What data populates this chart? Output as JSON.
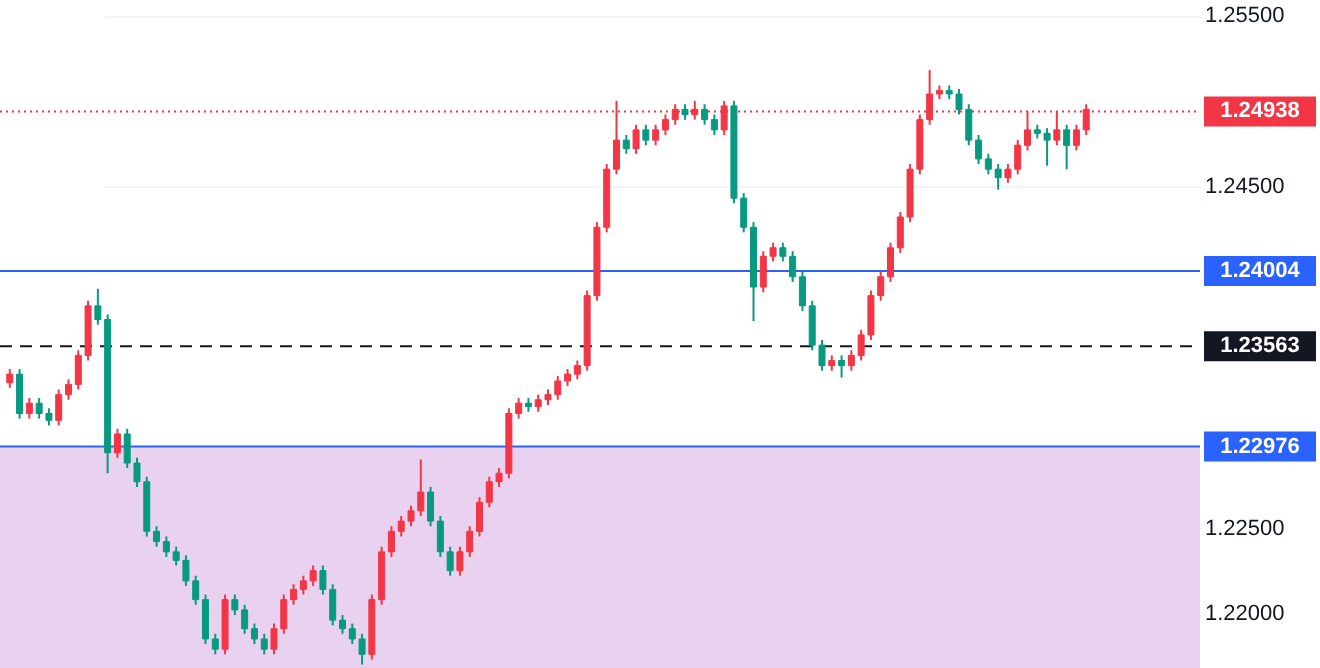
{
  "chart_data": {
    "type": "candlestick",
    "categories": [
      null,
      null,
      null,
      null,
      null,
      null,
      null,
      null,
      null,
      null,
      null,
      null,
      null,
      null,
      null,
      null,
      null,
      null,
      null,
      null,
      null,
      null,
      null,
      null,
      null,
      null,
      null,
      null,
      null,
      null,
      null,
      null,
      null,
      null,
      null,
      null,
      null,
      null,
      null,
      null,
      null,
      null,
      null,
      null,
      null,
      null,
      null,
      null,
      null,
      null,
      null,
      null,
      null,
      null,
      null,
      null,
      null,
      null,
      null,
      null,
      null,
      null,
      null,
      null,
      null,
      null,
      null,
      null,
      null,
      null,
      null,
      null,
      null,
      null,
      null,
      null,
      null,
      null,
      null,
      null,
      null,
      null,
      null,
      null,
      null,
      null,
      null,
      null,
      null,
      null,
      null,
      null,
      null,
      null,
      null,
      null,
      null,
      null,
      null,
      null,
      null,
      null,
      null,
      null,
      null,
      null,
      null,
      null,
      null,
      null,
      null
    ],
    "ohlc": [
      [
        1.2335,
        1.2343,
        1.2332,
        1.234
      ],
      [
        1.234,
        1.2343,
        1.2314,
        1.2317
      ],
      [
        1.2317,
        1.2326,
        1.2314,
        1.2323
      ],
      [
        1.2323,
        1.2326,
        1.2314,
        1.2317
      ],
      [
        1.2317,
        1.232,
        1.231,
        1.2313
      ],
      [
        1.2313,
        1.2331,
        1.231,
        1.2328
      ],
      [
        1.2328,
        1.2337,
        1.2325,
        1.2334
      ],
      [
        1.2334,
        1.2354,
        1.2331,
        1.2351
      ],
      [
        1.2351,
        1.2383,
        1.2348,
        1.238
      ],
      [
        1.238,
        1.239,
        1.2369,
        1.2372
      ],
      [
        1.2372,
        1.2375,
        1.2282,
        1.2294
      ],
      [
        1.2294,
        1.2308,
        1.2291,
        1.2305
      ],
      [
        1.2305,
        1.2308,
        1.2285,
        1.2288
      ],
      [
        1.2288,
        1.2291,
        1.2274,
        1.2277
      ],
      [
        1.2277,
        1.228,
        1.2245,
        1.2248
      ],
      [
        1.2248,
        1.2251,
        1.2239,
        1.2242
      ],
      [
        1.2242,
        1.2245,
        1.2233,
        1.2236
      ],
      [
        1.2236,
        1.2239,
        1.2228,
        1.2231
      ],
      [
        1.2231,
        1.2234,
        1.2216,
        1.2219
      ],
      [
        1.2219,
        1.2222,
        1.2205,
        1.2208
      ],
      [
        1.2208,
        1.2211,
        1.2182,
        1.2185
      ],
      [
        1.2185,
        1.2188,
        1.2176,
        1.2179
      ],
      [
        1.2179,
        1.2211,
        1.2176,
        1.2208
      ],
      [
        1.2208,
        1.2211,
        1.2199,
        1.2202
      ],
      [
        1.2202,
        1.2205,
        1.2188,
        1.2191
      ],
      [
        1.2191,
        1.2194,
        1.2182,
        1.2185
      ],
      [
        1.2185,
        1.2188,
        1.2176,
        1.2179
      ],
      [
        1.2179,
        1.2194,
        1.2176,
        1.2191
      ],
      [
        1.2191,
        1.2211,
        1.2188,
        1.2208
      ],
      [
        1.2208,
        1.2217,
        1.2205,
        1.2214
      ],
      [
        1.2214,
        1.2222,
        1.2211,
        1.2219
      ],
      [
        1.2219,
        1.2228,
        1.2216,
        1.2225
      ],
      [
        1.2225,
        1.2228,
        1.2211,
        1.2214
      ],
      [
        1.2214,
        1.2217,
        1.2193,
        1.2196
      ],
      [
        1.2196,
        1.2199,
        1.2188,
        1.2191
      ],
      [
        1.2191,
        1.2194,
        1.2182,
        1.2185
      ],
      [
        1.2185,
        1.2188,
        1.217,
        1.2176
      ],
      [
        1.2176,
        1.2211,
        1.2173,
        1.2208
      ],
      [
        1.2208,
        1.2239,
        1.2205,
        1.2236
      ],
      [
        1.2236,
        1.2251,
        1.2233,
        1.2248
      ],
      [
        1.2248,
        1.2257,
        1.2245,
        1.2254
      ],
      [
        1.2254,
        1.2263,
        1.2251,
        1.226
      ],
      [
        1.226,
        1.229,
        1.2257,
        1.2271
      ],
      [
        1.2271,
        1.2274,
        1.2251,
        1.2254
      ],
      [
        1.2254,
        1.2257,
        1.2233,
        1.2236
      ],
      [
        1.2236,
        1.2239,
        1.2222,
        1.2225
      ],
      [
        1.2225,
        1.2239,
        1.2222,
        1.2236
      ],
      [
        1.2236,
        1.2251,
        1.2233,
        1.2248
      ],
      [
        1.2248,
        1.2268,
        1.2245,
        1.2265
      ],
      [
        1.2265,
        1.228,
        1.2262,
        1.2277
      ],
      [
        1.2277,
        1.2285,
        1.2274,
        1.2282
      ],
      [
        1.2282,
        1.232,
        1.2279,
        1.2317
      ],
      [
        1.2317,
        1.2326,
        1.2314,
        1.2323
      ],
      [
        1.2323,
        1.2326,
        1.2318,
        1.2321
      ],
      [
        1.2321,
        1.2328,
        1.2318,
        1.2325
      ],
      [
        1.2325,
        1.2331,
        1.2322,
        1.2328
      ],
      [
        1.2328,
        1.2339,
        1.2325,
        1.2336
      ],
      [
        1.2336,
        1.2343,
        1.2333,
        1.234
      ],
      [
        1.234,
        1.2348,
        1.2337,
        1.2345
      ],
      [
        1.2345,
        1.2389,
        1.2342,
        1.2386
      ],
      [
        1.2386,
        1.2429,
        1.2383,
        1.2426
      ],
      [
        1.2426,
        1.2463,
        1.2423,
        1.246
      ],
      [
        1.246,
        1.25,
        1.2457,
        1.2477
      ],
      [
        1.2477,
        1.248,
        1.2469,
        1.2472
      ],
      [
        1.2472,
        1.2486,
        1.2469,
        1.2483
      ],
      [
        1.2483,
        1.2486,
        1.2474,
        1.2477
      ],
      [
        1.2477,
        1.2486,
        1.2474,
        1.2483
      ],
      [
        1.2483,
        1.2492,
        1.248,
        1.2489
      ],
      [
        1.2489,
        1.2498,
        1.2486,
        1.2495
      ],
      [
        1.2495,
        1.2498,
        1.2489,
        1.2492
      ],
      [
        1.2492,
        1.25,
        1.2489,
        1.2495
      ],
      [
        1.2495,
        1.2498,
        1.2486,
        1.2489
      ],
      [
        1.2489,
        1.2492,
        1.248,
        1.2483
      ],
      [
        1.2483,
        1.25,
        1.248,
        1.2497
      ],
      [
        1.2497,
        1.25,
        1.244,
        1.2443
      ],
      [
        1.2443,
        1.2446,
        1.2423,
        1.2426
      ],
      [
        1.2426,
        1.2429,
        1.2371,
        1.2391
      ],
      [
        1.2391,
        1.2412,
        1.2388,
        1.2409
      ],
      [
        1.2409,
        1.2417,
        1.2406,
        1.2414
      ],
      [
        1.2414,
        1.2417,
        1.2406,
        1.2409
      ],
      [
        1.2409,
        1.2412,
        1.2394,
        1.2397
      ],
      [
        1.2397,
        1.24,
        1.2377,
        1.238
      ],
      [
        1.238,
        1.2383,
        1.2354,
        1.2357
      ],
      [
        1.2357,
        1.236,
        1.2342,
        1.2345
      ],
      [
        1.2345,
        1.2351,
        1.2342,
        1.2348
      ],
      [
        1.2348,
        1.2351,
        1.2338,
        1.2345
      ],
      [
        1.2345,
        1.2354,
        1.2342,
        1.2351
      ],
      [
        1.2351,
        1.2366,
        1.2348,
        1.2363
      ],
      [
        1.2363,
        1.2389,
        1.236,
        1.2386
      ],
      [
        1.2386,
        1.24,
        1.2383,
        1.2397
      ],
      [
        1.2397,
        1.2417,
        1.2394,
        1.2414
      ],
      [
        1.2414,
        1.2435,
        1.2411,
        1.2432
      ],
      [
        1.2432,
        1.2463,
        1.2429,
        1.246
      ],
      [
        1.246,
        1.2492,
        1.2457,
        1.2489
      ],
      [
        1.2489,
        1.2518,
        1.2486,
        1.2504
      ],
      [
        1.2504,
        1.2509,
        1.2501,
        1.2506
      ],
      [
        1.2506,
        1.2509,
        1.2501,
        1.2504
      ],
      [
        1.2504,
        1.2507,
        1.2492,
        1.2495
      ],
      [
        1.2495,
        1.2498,
        1.2474,
        1.2477
      ],
      [
        1.2477,
        1.248,
        1.2463,
        1.2466
      ],
      [
        1.2466,
        1.2469,
        1.2457,
        1.246
      ],
      [
        1.246,
        1.2463,
        1.2448,
        1.2455
      ],
      [
        1.2455,
        1.2463,
        1.2452,
        1.246
      ],
      [
        1.246,
        1.2477,
        1.2457,
        1.2474
      ],
      [
        1.2474,
        1.2494,
        1.2471,
        1.2483
      ],
      [
        1.2483,
        1.2486,
        1.2478,
        1.2481
      ],
      [
        1.2481,
        1.2484,
        1.2462,
        1.2477
      ],
      [
        1.2477,
        1.2494,
        1.2474,
        1.2483
      ],
      [
        1.2483,
        1.2486,
        1.246,
        1.2474
      ],
      [
        1.2474,
        1.2486,
        1.2471,
        1.2483
      ],
      [
        1.2483,
        1.2498,
        1.248,
        1.2495
      ]
    ],
    "colors": [
      "#f23645",
      "#089981",
      "#f23645",
      "#089981",
      "#089981",
      "#f23645",
      "#f23645",
      "#f23645",
      "#f23645",
      "#089981",
      "#089981",
      "#f23645",
      "#089981",
      "#089981",
      "#089981",
      "#089981",
      "#089981",
      "#089981",
      "#089981",
      "#089981",
      "#089981",
      "#089981",
      "#f23645",
      "#089981",
      "#089981",
      "#089981",
      "#089981",
      "#f23645",
      "#f23645",
      "#f23645",
      "#f23645",
      "#f23645",
      "#089981",
      "#089981",
      "#089981",
      "#089981",
      "#089981",
      "#f23645",
      "#f23645",
      "#f23645",
      "#f23645",
      "#f23645",
      "#f23645",
      "#089981",
      "#089981",
      "#089981",
      "#f23645",
      "#f23645",
      "#f23645",
      "#f23645",
      "#f23645",
      "#f23645",
      "#f23645",
      "#089981",
      "#f23645",
      "#f23645",
      "#f23645",
      "#f23645",
      "#f23645",
      "#f23645",
      "#f23645",
      "#f23645",
      "#f23645",
      "#089981",
      "#f23645",
      "#089981",
      "#f23645",
      "#f23645",
      "#f23645",
      "#089981",
      "#f23645",
      "#089981",
      "#089981",
      "#f23645",
      "#089981",
      "#089981",
      "#089981",
      "#f23645",
      "#f23645",
      "#089981",
      "#089981",
      "#089981",
      "#089981",
      "#089981",
      "#f23645",
      "#089981",
      "#f23645",
      "#f23645",
      "#f23645",
      "#f23645",
      "#f23645",
      "#f23645",
      "#f23645",
      "#f23645",
      "#f23645",
      "#f23645",
      "#089981",
      "#089981",
      "#089981",
      "#089981",
      "#089981",
      "#089981",
      "#f23645",
      "#f23645",
      "#f23645",
      "#089981",
      "#089981",
      "#f23645",
      "#089981",
      "#f23645",
      "#f23645"
    ],
    "ylim": [
      1.2168,
      1.2552
    ],
    "yticks": [
      {
        "value": 1.255,
        "label": "1.25500"
      },
      {
        "value": 1.245,
        "label": "1.24500"
      },
      {
        "value": 1.225,
        "label": "1.22500"
      },
      {
        "value": 1.22,
        "label": "1.22000"
      }
    ],
    "tick_labels": "y",
    "grid": "y",
    "ref_lines": [
      {
        "axis": "y",
        "value": 1.24938,
        "label": "1.24938",
        "color": "#f23645",
        "line_style": "dotted"
      },
      {
        "axis": "y",
        "value": 1.24004,
        "label": "1.24004",
        "color": "#2962ff",
        "line_style": "solid"
      },
      {
        "axis": "y",
        "value": 1.23563,
        "label": "1.23563",
        "color": "#131722",
        "line_style": "dashed"
      },
      {
        "axis": "y",
        "value": 1.22976,
        "label": "1.22976",
        "color": "#2962ff",
        "line_style": "solid"
      }
    ],
    "bands": [
      {
        "axis": "y",
        "from": 1.2168,
        "to": 1.22976,
        "color": "#e7cdee"
      }
    ]
  }
}
